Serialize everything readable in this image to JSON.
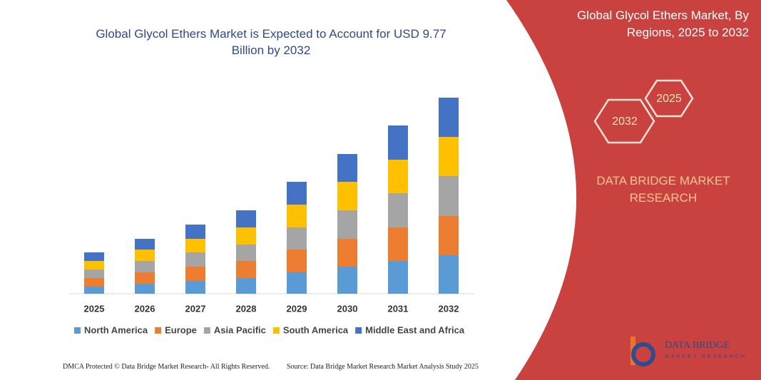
{
  "chart_data": {
    "type": "stacked_bar",
    "title": "Global Glycol Ethers Market is Expected to Account for USD 9.77 Billion by 2032",
    "categories": [
      "2025",
      "2026",
      "2027",
      "2028",
      "2029",
      "2030",
      "2031",
      "2032"
    ],
    "series": [
      {
        "name": "North America",
        "color": "#5b9bd5",
        "values": [
          10,
          14,
          18,
          22,
          30,
          38,
          46,
          54
        ]
      },
      {
        "name": "Europe",
        "color": "#ed7d31",
        "values": [
          12,
          16,
          20,
          24,
          32,
          39,
          47,
          55
        ]
      },
      {
        "name": "Asia Pacific",
        "color": "#a5a5a5",
        "values": [
          12,
          16,
          20,
          23,
          31,
          40,
          48,
          56
        ]
      },
      {
        "name": "South America",
        "color": "#ffc000",
        "values": [
          12,
          16,
          19,
          24,
          32,
          40,
          47,
          55
        ]
      },
      {
        "name": "Middle East and Africa",
        "color": "#4472c4",
        "values": [
          12,
          15,
          20,
          24,
          32,
          39,
          48,
          55
        ]
      }
    ],
    "legend": "bottom"
  },
  "panel": {
    "title": "Global Glycol Ethers Market, By Regions, 2025 to 2032",
    "hexagons": [
      "2032",
      "2025"
    ],
    "brand": "DATA BRIDGE MARKET RESEARCH"
  },
  "logo": {
    "name": "DATA BRIDGE",
    "tagline": "MARKET RESEARCH"
  },
  "footer": {
    "left": "DMCA Protected © Data Bridge Market Research- All Rights Reserved.",
    "right": "Source: Data Bridge Market Research Market Analysis Study 2025"
  }
}
